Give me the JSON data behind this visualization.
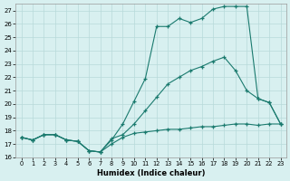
{
  "xlabel": "Humidex (Indice chaleur)",
  "xlim": [
    -0.5,
    23.5
  ],
  "ylim": [
    16,
    27.5
  ],
  "yticks": [
    16,
    17,
    18,
    19,
    20,
    21,
    22,
    23,
    24,
    25,
    26,
    27
  ],
  "xticks": [
    0,
    1,
    2,
    3,
    4,
    5,
    6,
    7,
    8,
    9,
    10,
    11,
    12,
    13,
    14,
    15,
    16,
    17,
    18,
    19,
    20,
    21,
    22,
    23
  ],
  "line_color": "#1a7a6e",
  "bg_color": "#d8f0f0",
  "grid_color": "#b8dada",
  "line1": {
    "x": [
      0,
      1,
      2,
      3,
      4,
      5,
      6,
      7,
      8,
      9,
      10,
      11,
      12,
      13,
      14,
      15,
      16,
      17,
      18,
      19,
      20,
      21,
      22,
      23
    ],
    "y": [
      17.5,
      17.3,
      17.7,
      17.7,
      17.3,
      17.2,
      16.5,
      16.4,
      17.3,
      18.5,
      20.2,
      21.9,
      25.8,
      25.8,
      26.4,
      26.1,
      26.4,
      27.1,
      27.3,
      27.3,
      27.3,
      20.4,
      20.1,
      18.5
    ]
  },
  "line2": {
    "x": [
      0,
      1,
      2,
      3,
      4,
      5,
      6,
      7,
      8,
      9,
      10,
      11,
      12,
      13,
      14,
      15,
      16,
      17,
      18,
      19,
      20,
      21,
      22,
      23
    ],
    "y": [
      17.5,
      17.3,
      17.7,
      17.7,
      17.3,
      17.2,
      16.5,
      16.4,
      17.4,
      17.7,
      18.5,
      19.5,
      20.5,
      21.5,
      22.0,
      22.5,
      22.8,
      23.2,
      23.5,
      22.5,
      21.0,
      20.4,
      20.1,
      18.5
    ]
  },
  "line3": {
    "x": [
      0,
      1,
      2,
      3,
      4,
      5,
      6,
      7,
      8,
      9,
      10,
      11,
      12,
      13,
      14,
      15,
      16,
      17,
      18,
      19,
      20,
      21,
      22,
      23
    ],
    "y": [
      17.5,
      17.3,
      17.7,
      17.7,
      17.3,
      17.2,
      16.5,
      16.4,
      17.0,
      17.5,
      17.8,
      17.9,
      18.0,
      18.1,
      18.1,
      18.2,
      18.3,
      18.3,
      18.4,
      18.5,
      18.5,
      18.4,
      18.5,
      18.5
    ]
  }
}
